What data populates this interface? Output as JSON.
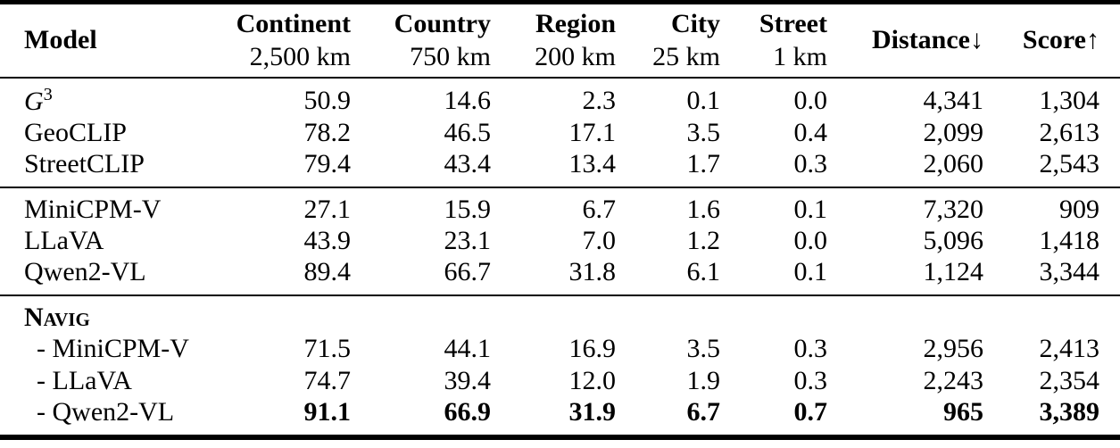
{
  "table": {
    "header": {
      "model_label": "Model",
      "columns": [
        {
          "label": "Continent",
          "sub": "2,500 km"
        },
        {
          "label": "Country",
          "sub": "750 km"
        },
        {
          "label": "Region",
          "sub": "200 km"
        },
        {
          "label": "City",
          "sub": "25 km"
        },
        {
          "label": "Street",
          "sub": "1 km"
        },
        {
          "label": "Distance",
          "arrow": "↓"
        },
        {
          "label": "Score",
          "arrow": "↑"
        }
      ]
    },
    "groups": [
      {
        "rows": [
          {
            "model": "G",
            "model_sup": "3",
            "italic": true,
            "values": [
              "50.9",
              "14.6",
              "2.3",
              "0.1",
              "0.0",
              "4,341",
              "1,304"
            ]
          },
          {
            "model": "GeoCLIP",
            "values": [
              "78.2",
              "46.5",
              "17.1",
              "3.5",
              "0.4",
              "2,099",
              "2,613"
            ]
          },
          {
            "model": "StreetCLIP",
            "values": [
              "79.4",
              "43.4",
              "13.4",
              "1.7",
              "0.3",
              "2,060",
              "2,543"
            ]
          }
        ]
      },
      {
        "rows": [
          {
            "model": "MiniCPM-V",
            "values": [
              "27.1",
              "15.9",
              "6.7",
              "1.6",
              "0.1",
              "7,320",
              "909"
            ]
          },
          {
            "model": "LLaVA",
            "values": [
              "43.9",
              "23.1",
              "7.0",
              "1.2",
              "0.0",
              "5,096",
              "1,418"
            ]
          },
          {
            "model": "Qwen2-VL",
            "values": [
              "89.4",
              "66.7",
              "31.8",
              "6.1",
              "0.1",
              "1,124",
              "3,344"
            ]
          }
        ]
      },
      {
        "rows": [
          {
            "model": "Navig",
            "smallcaps": true,
            "bold_model": true,
            "values": [
              "",
              "",
              "",
              "",
              "",
              "",
              ""
            ]
          },
          {
            "model": "- MiniCPM-V",
            "indent": true,
            "values": [
              "71.5",
              "44.1",
              "16.9",
              "3.5",
              "0.3",
              "2,956",
              "2,413"
            ]
          },
          {
            "model": "- LLaVA",
            "indent": true,
            "values": [
              "74.7",
              "39.4",
              "12.0",
              "1.9",
              "0.3",
              "2,243",
              "2,354"
            ]
          },
          {
            "model": "- Qwen2-VL",
            "indent": true,
            "bold_values": true,
            "values": [
              "91.1",
              "66.9",
              "31.9",
              "6.7",
              "0.7",
              "965",
              "3,389"
            ]
          }
        ]
      }
    ]
  }
}
